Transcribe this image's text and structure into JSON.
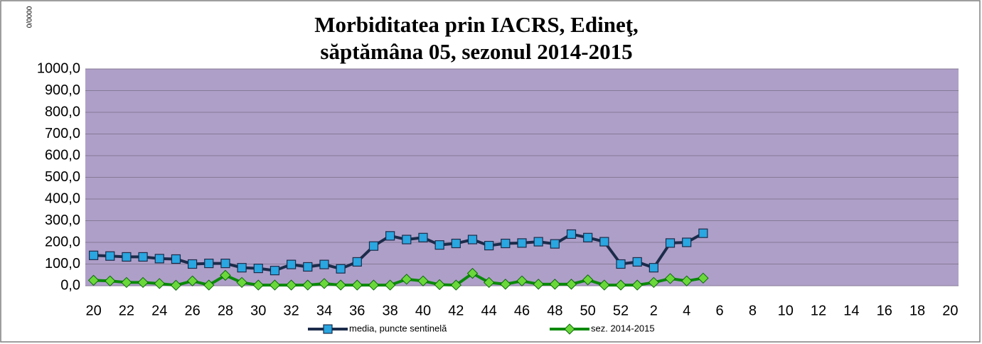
{
  "chart_data": {
    "type": "line",
    "title": [
      "Morbiditatea prin IACRS, Edineţ,",
      "săptămâna 05, sezonul 2014-2015"
    ],
    "ylabel": "0/0000",
    "categories": [
      "20",
      null,
      "22",
      null,
      "24",
      null,
      "26",
      null,
      "28",
      null,
      "30",
      null,
      "32",
      null,
      "34",
      null,
      "36",
      null,
      "38",
      null,
      "40",
      null,
      "42",
      null,
      "44",
      null,
      "46",
      null,
      "48",
      null,
      "50",
      null,
      "52",
      null,
      "2",
      null,
      "4",
      null,
      "6",
      null,
      "8",
      null,
      "10",
      null,
      "12",
      null,
      "14",
      null,
      "16",
      null,
      "18",
      null,
      "20"
    ],
    "series": [
      {
        "name": "media, puncte sentinelă",
        "color": "#1c2b4a",
        "marker_color": "#2aa6e0",
        "marker": "square",
        "values": [
          140,
          137,
          133,
          133,
          125,
          123,
          100,
          103,
          103,
          83,
          80,
          70,
          98,
          87,
          98,
          78,
          110,
          183,
          230,
          213,
          222,
          188,
          195,
          213,
          185,
          195,
          197,
          203,
          193,
          238,
          222,
          203,
          100,
          110,
          83,
          197,
          200,
          242,
          null,
          null,
          null,
          null,
          null,
          null,
          null,
          null,
          null,
          null,
          null,
          null,
          null,
          null,
          null
        ]
      },
      {
        "name": "sez. 2014-2015",
        "color": "#0a8a0a",
        "marker_color": "#6ad83a",
        "marker": "diamond",
        "values": [
          25,
          22,
          15,
          15,
          10,
          2,
          22,
          3,
          48,
          15,
          3,
          3,
          3,
          3,
          10,
          3,
          3,
          3,
          3,
          30,
          22,
          5,
          3,
          57,
          15,
          7,
          22,
          7,
          7,
          7,
          27,
          3,
          3,
          3,
          15,
          33,
          22,
          35,
          null,
          null,
          null,
          null,
          null,
          null,
          null,
          null,
          null,
          null,
          null,
          null,
          null,
          null,
          null
        ]
      }
    ],
    "ylim": [
      0,
      1000
    ],
    "yticks": [
      {
        "value": 0,
        "label": "0,0"
      },
      {
        "value": 100,
        "label": "100,0"
      },
      {
        "value": 200,
        "label": "200,0"
      },
      {
        "value": 300,
        "label": "300,0"
      },
      {
        "value": 400,
        "label": "400,0"
      },
      {
        "value": 500,
        "label": "500,0"
      },
      {
        "value": 600,
        "label": "600,0"
      },
      {
        "value": 700,
        "label": "700,0"
      },
      {
        "value": 800,
        "label": "800,0"
      },
      {
        "value": 900,
        "label": "900,0"
      },
      {
        "value": 1000,
        "label": "1000,0"
      }
    ],
    "grid": true,
    "plot_background": "#ae9fc8",
    "legend": "bottom"
  }
}
